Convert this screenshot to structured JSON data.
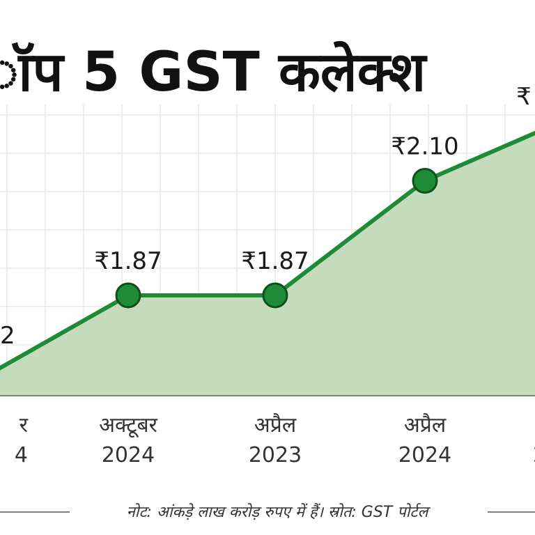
{
  "chart_data": {
    "type": "area",
    "title": "ॉप 5 GST कलेक्श",
    "x": [
      "र 4",
      "अक्टूबर 2024",
      "अप्रैल 2023",
      "अप्रैल 2024",
      "2"
    ],
    "x_lines": [
      [
        "र",
        "4"
      ],
      [
        "अक्टूबर",
        "2024"
      ],
      [
        "अप्रैल",
        "2023"
      ],
      [
        "अप्रैल",
        "2024"
      ],
      [
        "",
        "2"
      ]
    ],
    "values": [
      1.72,
      1.87,
      1.87,
      2.1,
      2.2
    ],
    "value_labels": [
      "2",
      "₹1.87",
      "₹1.87",
      "₹2.10",
      "₹"
    ],
    "ylim": [
      1.4,
      2.4
    ],
    "grid": true,
    "legend": "none",
    "footnote": "नोट: आंकड़े लाख करोड़ रुपए में हैं। स्रोत: GST पोर्टल"
  },
  "colors": {
    "line": "#1f8a38",
    "area": "#c5dcbc",
    "marker_fill": "#1f8a38",
    "marker_stroke": "#0f4f1f",
    "grid": "#e9e9e9",
    "baseline": "#6a8f60"
  }
}
